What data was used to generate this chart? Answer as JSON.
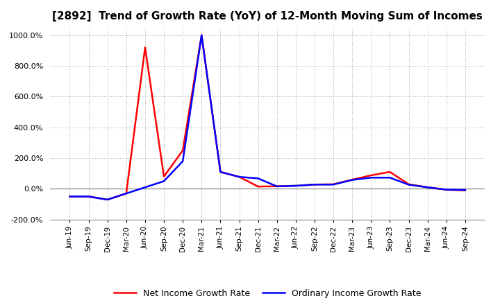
{
  "title": "[2892]  Trend of Growth Rate (YoY) of 12-Month Moving Sum of Incomes",
  "x_labels": [
    "Jun-19",
    "Sep-19",
    "Dec-19",
    "Mar-20",
    "Jun-20",
    "Sep-20",
    "Dec-20",
    "Mar-21",
    "Jun-21",
    "Sep-21",
    "Dec-21",
    "Mar-22",
    "Jun-22",
    "Sep-22",
    "Dec-22",
    "Mar-23",
    "Jun-23",
    "Sep-23",
    "Dec-23",
    "Mar-24",
    "Jun-24",
    "Sep-24"
  ],
  "ordinary_income": [
    -50,
    -50,
    -70,
    -30,
    10,
    50,
    180,
    1000,
    110,
    78,
    68,
    16,
    20,
    28,
    28,
    58,
    73,
    73,
    27,
    10,
    -5,
    -7
  ],
  "net_income": [
    -50,
    -50,
    -70,
    -30,
    920,
    80,
    250,
    1000,
    110,
    78,
    15,
    17,
    20,
    28,
    30,
    60,
    88,
    110,
    30,
    10,
    -6,
    -10
  ],
  "ordinary_color": "#0000ff",
  "net_color": "#ff0000",
  "background_color": "#ffffff",
  "grid_color": "#aaaaaa",
  "zero_line_color": "#888888",
  "ylim": [
    -150,
    1050
  ],
  "yticks": [
    -200,
    0,
    200,
    400,
    600,
    800,
    1000
  ],
  "ytick_labels": [
    "-200.0%",
    "0.0%",
    "200.0%",
    "400.0%",
    "600.0%",
    "800.0%",
    "1000.0%"
  ],
  "legend_ordinary": "Ordinary Income Growth Rate",
  "legend_net": "Net Income Growth Rate",
  "title_fontsize": 11,
  "tick_fontsize": 7.5,
  "ytick_fontsize": 8.0
}
